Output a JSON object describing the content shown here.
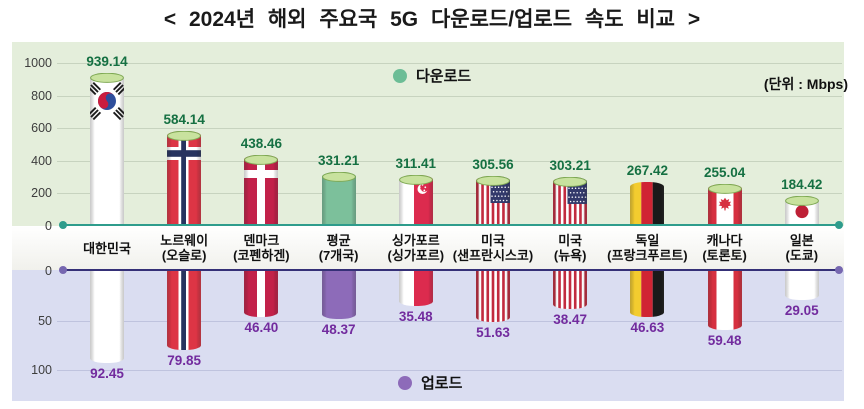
{
  "title": "<  2024년  해외  주요국  5G  다운로드/업로드  속도  비교  >",
  "unit_label": "(단위 : Mbps)",
  "legend": {
    "download": "다운로드",
    "upload": "업로드"
  },
  "colors": {
    "download_panel": "#e4eedb",
    "upload_panel": "#daddf1",
    "download_axis_line": "#2e9c8c",
    "upload_axis_line": "#353077",
    "download_value_text": "#157042",
    "upload_value_text": "#722b9e",
    "download_legend_dot": "#6cbd96",
    "upload_legend_dot": "#8d6bb9",
    "bar_cap_green": "#c8e29e"
  },
  "chart_data": {
    "type": "bar",
    "title": "2024년 해외 주요국 5G 다운로드/업로드 속도 비교",
    "unit": "Mbps",
    "orientation": "mirrored-vertical",
    "download_axis": {
      "ticks": [
        1000,
        800,
        600,
        400,
        200,
        0
      ],
      "range": [
        0,
        1000
      ]
    },
    "upload_axis": {
      "ticks": [
        0,
        50,
        100
      ],
      "range": [
        0,
        100
      ],
      "inverted": true
    },
    "legend_position": {
      "download": "top-center",
      "upload": "bottom-center"
    },
    "grid": true,
    "series": [
      {
        "name": "다운로드",
        "values": [
          939.14,
          584.14,
          438.46,
          331.21,
          311.41,
          305.56,
          303.21,
          267.42,
          255.04,
          184.42
        ]
      },
      {
        "name": "업로드",
        "values": [
          92.45,
          79.85,
          46.4,
          48.37,
          35.48,
          51.63,
          38.47,
          46.63,
          59.48,
          29.05
        ]
      }
    ],
    "categories": [
      {
        "name": "대한민국",
        "city": "",
        "flag": "kr",
        "download": 939.14,
        "upload": 92.45
      },
      {
        "name": "노르웨이",
        "city": "(오슬로)",
        "flag": "no",
        "download": 584.14,
        "upload": 79.85
      },
      {
        "name": "덴마크",
        "city": "(코펜하겐)",
        "flag": "dk",
        "download": 438.46,
        "upload": 46.4
      },
      {
        "name": "평균",
        "city": "(7개국)",
        "flag": "avg",
        "download": 331.21,
        "upload": 48.37
      },
      {
        "name": "싱가포르",
        "city": "(싱가포르)",
        "flag": "sg",
        "download": 311.41,
        "upload": 35.48
      },
      {
        "name": "미국",
        "city": "(샌프란시스코)",
        "flag": "us",
        "download": 305.56,
        "upload": 51.63
      },
      {
        "name": "미국",
        "city": "(뉴욕)",
        "flag": "us",
        "download": 303.21,
        "upload": 38.47
      },
      {
        "name": "독일",
        "city": "(프랑크푸르트)",
        "flag": "de",
        "download": 267.42,
        "upload": 46.63
      },
      {
        "name": "캐나다",
        "city": "(토론토)",
        "flag": "ca",
        "download": 255.04,
        "upload": 59.48
      },
      {
        "name": "일본",
        "city": "(도쿄)",
        "flag": "jp",
        "download": 184.42,
        "upload": 29.05
      }
    ]
  }
}
